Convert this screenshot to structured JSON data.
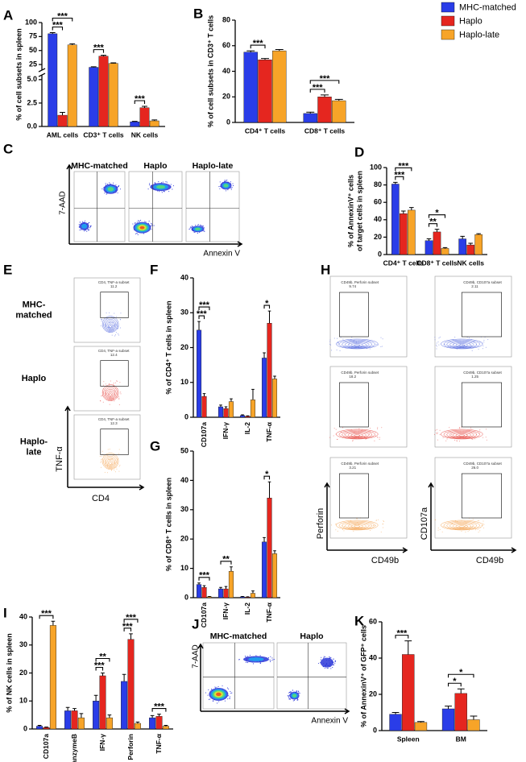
{
  "panel_labels": [
    "A",
    "B",
    "C",
    "D",
    "E",
    "F",
    "G",
    "H",
    "I",
    "J",
    "K"
  ],
  "chart_data": [
    {
      "type": "bar",
      "y_label": "% of cell subsets in spleen",
      "categories": [
        "AML cells",
        "CD3⁺ T cells",
        "NK cells"
      ],
      "series": [
        {
          "color": "#2a3de8",
          "values": [
            80,
            20,
            0.5
          ],
          "errors": [
            2,
            1,
            0.05
          ]
        },
        {
          "color": "#e5261f",
          "values": [
            1.2,
            40,
            2
          ],
          "errors": [
            0.3,
            1.5,
            0.15
          ]
        },
        {
          "color": "#f7a428",
          "values": [
            60,
            27,
            0.6
          ],
          "errors": [
            2,
            1,
            0.1
          ]
        }
      ],
      "ylim": [
        0,
        100
      ],
      "axis_break": [
        5.5,
        15
      ],
      "yticks": [
        {
          "value": 0,
          "label": "0.0"
        },
        {
          "value": 2.5,
          "label": "2.5"
        },
        {
          "value": 5,
          "label": "5.0"
        },
        25,
        50,
        75,
        100
      ],
      "significance": [
        "***",
        "***",
        "***",
        "***"
      ]
    },
    {
      "type": "bar",
      "y_label": "% of cell subsets in CD3⁺ T cells",
      "categories": [
        "CD4⁺ T cells",
        "CD8⁺ T cells"
      ],
      "series": [
        {
          "name": "MHC-matched",
          "color": "#2a3de8",
          "values": [
            55,
            7
          ],
          "errors": [
            1,
            1
          ]
        },
        {
          "name": "Haplo",
          "color": "#e5261f",
          "values": [
            49,
            20
          ],
          "errors": [
            1,
            1.5
          ]
        },
        {
          "name": "Haplo-late",
          "color": "#f7a428",
          "values": [
            56,
            17
          ],
          "errors": [
            1,
            1
          ]
        }
      ],
      "legend": "top-right",
      "ylim": [
        0,
        80
      ],
      "yticks": [
        0,
        20,
        40,
        60,
        80
      ],
      "significance": [
        "***",
        "***",
        "***"
      ]
    },
    {
      "type": "bar",
      "y_label": [
        "% of AnnexinV⁺ cells",
        "of target cells in spleen"
      ],
      "categories": [
        "CD4⁺ T cells",
        "CD8⁺ T cells",
        "NK cells"
      ],
      "series": [
        {
          "color": "#2a3de8",
          "values": [
            81,
            16,
            18
          ],
          "errors": [
            2,
            2,
            3
          ]
        },
        {
          "color": "#e5261f",
          "values": [
            47,
            26,
            11
          ],
          "errors": [
            3,
            3,
            2
          ]
        },
        {
          "color": "#f7a428",
          "values": [
            51,
            7,
            23
          ],
          "errors": [
            3,
            1,
            1
          ]
        }
      ],
      "ylim": [
        0,
        100
      ],
      "yticks": [
        0,
        20,
        40,
        60,
        80,
        100
      ],
      "significance": [
        "***",
        "***",
        "**",
        "*"
      ]
    },
    {
      "type": "bar",
      "y_label": "% of CD4⁺ T cells in spleen",
      "categories": [
        "CD107a",
        "IFN-γ",
        "IL-2",
        "TNF-α"
      ],
      "series": [
        {
          "color": "#2a3de8",
          "values": [
            25,
            3,
            0.5,
            17
          ],
          "errors": [
            2.5,
            0.5,
            0.2,
            1.5
          ]
        },
        {
          "color": "#e5261f",
          "values": [
            6,
            2.5,
            0.3,
            27
          ],
          "errors": [
            0.8,
            0.5,
            0.1,
            3.5
          ]
        },
        {
          "color": "#f7a428",
          "values": [
            null,
            4.5,
            5,
            11
          ],
          "errors": [
            null,
            0.8,
            3,
            0.8
          ]
        }
      ],
      "ylim": [
        0,
        40
      ],
      "yticks": [
        0,
        10,
        20,
        30,
        40
      ],
      "significance": [
        "***",
        "***",
        "*"
      ]
    },
    {
      "type": "bar",
      "y_label": "% of CD8⁺ T cells in spleen",
      "categories": [
        "CD107a",
        "IFN-γ",
        "IL-2",
        "TNF-α"
      ],
      "series": [
        {
          "color": "#2a3de8",
          "values": [
            4.5,
            3,
            0.3,
            19
          ],
          "errors": [
            0.5,
            0.5,
            0.1,
            1.5
          ]
        },
        {
          "color": "#e5261f",
          "values": [
            3.5,
            3,
            0.2,
            34
          ],
          "errors": [
            0.6,
            0.8,
            0.1,
            5.5
          ]
        },
        {
          "color": "#f7a428",
          "values": [
            0.3,
            9,
            1.5,
            15
          ],
          "errors": [
            0.1,
            1.5,
            0.8,
            1
          ]
        }
      ],
      "ylim": [
        0,
        50
      ],
      "yticks": [
        0,
        10,
        20,
        30,
        40,
        50
      ],
      "significance": [
        "***",
        "**",
        "*"
      ]
    },
    {
      "type": "bar",
      "y_label": "% of NK cells in spleen",
      "categories": [
        "CD107a",
        "GranzymeB",
        "IFN-γ",
        "Perforin",
        "TNF-α"
      ],
      "series": [
        {
          "color": "#2a3de8",
          "values": [
            1,
            6.5,
            10,
            17,
            4
          ],
          "errors": [
            0.3,
            1.2,
            2,
            2.5,
            0.8
          ]
        },
        {
          "color": "#e5261f",
          "values": [
            0.5,
            6.5,
            19,
            32,
            4.5
          ],
          "errors": [
            0.2,
            0.8,
            1,
            2,
            0.8
          ]
        },
        {
          "color": "#f7a428",
          "values": [
            37,
            4,
            4,
            2,
            1
          ],
          "errors": [
            1.5,
            1.5,
            1,
            0.5,
            0.3
          ]
        }
      ],
      "ylim": [
        0,
        40
      ],
      "yticks": [
        0,
        10,
        20,
        30,
        40
      ],
      "significance": [
        "***",
        "***",
        "**",
        "***",
        "***",
        "***"
      ]
    },
    {
      "type": "bar",
      "y_label": "% of AnnexinV⁺ of GFP⁺ cells",
      "categories": [
        "Spleen",
        "BM"
      ],
      "series": [
        {
          "color": "#2a3de8",
          "values": [
            9,
            12
          ],
          "errors": [
            1,
            1.5
          ]
        },
        {
          "color": "#e5261f",
          "values": [
            42,
            20.5
          ],
          "errors": [
            7.5,
            2.5
          ]
        },
        {
          "color": "#f7a428",
          "values": [
            4.5,
            6
          ],
          "errors": [
            0.5,
            2
          ]
        }
      ],
      "ylim": [
        0,
        60
      ],
      "yticks": [
        0,
        20,
        40,
        60
      ],
      "significance": [
        "***",
        "*",
        "*"
      ]
    }
  ],
  "flow_panels": {
    "C": {
      "titles": [
        "MHC-matched",
        "Haplo",
        "Haplo-late"
      ],
      "y_label": "7-AAD",
      "x_label": "Annexin V"
    },
    "E": {
      "row_labels": [
        [
          "MHC-",
          "matched"
        ],
        [
          "Haplo"
        ],
        [
          "Haplo-",
          "late"
        ]
      ],
      "gate_name": "CD4, TNF-a subset",
      "gate_values": [
        "11.2",
        "12.4",
        "12.3"
      ],
      "y_label": "TNF-α",
      "x_label": "CD4"
    },
    "H": {
      "gate_names": [
        "CD49b, Perforin subset",
        "CD49b, CD107a subset"
      ],
      "gate_values": [
        [
          "9.74",
          "2.11"
        ],
        [
          "18.2",
          "1.25"
        ],
        [
          "3.21",
          "26.0"
        ]
      ],
      "y_labels": [
        "Perforin",
        "CD107a"
      ],
      "x_label": "CD49b"
    },
    "J": {
      "titles": [
        "MHC-matched",
        "Haplo"
      ],
      "y_label": "7-AAD",
      "x_label": "Annexin V"
    }
  }
}
